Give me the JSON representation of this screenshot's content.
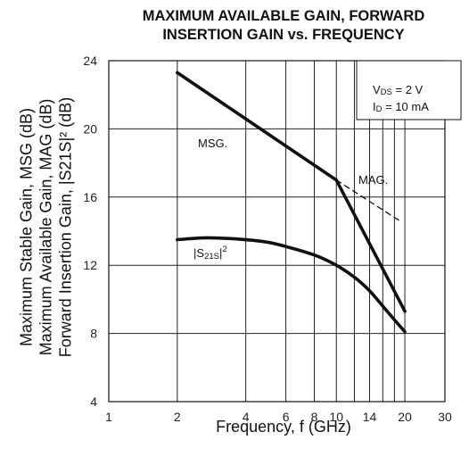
{
  "chart_data": {
    "type": "line",
    "title": [
      "MAXIMUM AVAILABLE GAIN, FORWARD",
      "INSERTION GAIN vs. FREQUENCY"
    ],
    "xlabel": "Frequency, f (GHz)",
    "ylabel_lines": [
      "Maximum Stable Gain, MSG (dB)",
      "Maximum Available Gain, MAG (dB)",
      "Forward Insertion Gain, |S21S|² (dB)"
    ],
    "x_scale": "log",
    "xlim": [
      1,
      30
    ],
    "ylim": [
      4,
      24
    ],
    "x_ticks": [
      1,
      2,
      4,
      6,
      8,
      10,
      14,
      20,
      30
    ],
    "x_tick_labels": [
      "1",
      "2",
      "4",
      "6",
      "8",
      "10",
      "14",
      "20",
      "30"
    ],
    "x_gridlines": [
      2,
      4,
      6,
      8,
      10,
      12,
      14,
      16,
      18,
      20
    ],
    "y_ticks": [
      4,
      8,
      12,
      16,
      20,
      24
    ],
    "y_tick_labels": [
      "4",
      "8",
      "12",
      "16",
      "20",
      "24"
    ],
    "series": [
      {
        "name": "MSG.",
        "style": "solid",
        "x": [
          2,
          10
        ],
        "y": [
          23.3,
          17.0
        ]
      },
      {
        "name": "MAG.",
        "style": "solid",
        "x": [
          10,
          20
        ],
        "y": [
          17.0,
          9.3
        ]
      },
      {
        "name": "",
        "style": "dashed",
        "x": [
          10,
          19
        ],
        "y": [
          17.0,
          14.6
        ]
      },
      {
        "name": "|S21S|²",
        "style": "solid",
        "x": [
          2,
          2.5,
          3,
          4,
          5,
          6,
          8,
          10,
          12,
          14,
          16,
          18,
          20
        ],
        "y": [
          13.5,
          13.6,
          13.6,
          13.5,
          13.35,
          13.1,
          12.6,
          12.0,
          11.3,
          10.5,
          9.6,
          8.8,
          8.1
        ]
      }
    ],
    "annotations": {
      "msg_label": "MSG.",
      "mag_label": "MAG.",
      "s21_label_prefix": "|S",
      "s21_label_sub": "21S",
      "s21_label_suffix": "|",
      "s21_label_sup": "2"
    },
    "conditions": {
      "vds_main": "V",
      "vds_sub": "DS",
      "vds_value": " = 2 V",
      "id_main": "I",
      "id_sub": "D",
      "id_value": " = 10 mA"
    },
    "grid": true,
    "line_color": "#111111"
  }
}
